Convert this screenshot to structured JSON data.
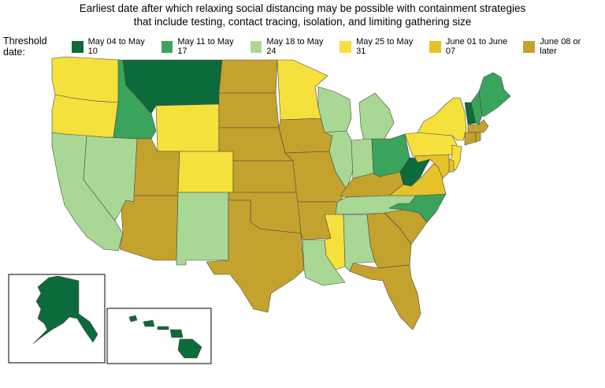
{
  "title_line1": "Earliest date after which relaxing social distancing may be possible with containment strategies",
  "title_line2": "that include testing, contact tracing, isolation, and limiting gathering size",
  "legend": {
    "title": "Threshold date:",
    "categories": [
      {
        "label": "May 04 to May 10",
        "color": "#0b6b3a"
      },
      {
        "label": "May 11 to May 17",
        "color": "#3aa35c"
      },
      {
        "label": "May 18 to May 24",
        "color": "#a8d893"
      },
      {
        "label": "May 25 to May 31",
        "color": "#f5e03c"
      },
      {
        "label": "June 01 to June 07",
        "color": "#e6c22a"
      },
      {
        "label": "June 08 or later",
        "color": "#c4a22e"
      }
    ]
  },
  "states": {
    "WA": 3,
    "OR": 3,
    "CA": 2,
    "NV": 2,
    "ID": 1,
    "MT": 0,
    "WY": 3,
    "UT": 5,
    "AZ": 5,
    "CO": 3,
    "NM": 2,
    "ND": 5,
    "SD": 5,
    "NE": 5,
    "KS": 5,
    "OK": 5,
    "TX": 5,
    "MN": 3,
    "IA": 5,
    "MO": 5,
    "AR": 5,
    "LA": 2,
    "WI": 2,
    "IL": 2,
    "MI": 2,
    "IN": 2,
    "OH": 1,
    "KY": 5,
    "TN": 2,
    "MS": 3,
    "AL": 2,
    "GA": 5,
    "FL": 5,
    "SC": 5,
    "NC": 1,
    "VA": 4,
    "WV": 0,
    "PA": 3,
    "NY": 3,
    "VT": 0,
    "NH": 1,
    "ME": 1,
    "MA": 5,
    "CT": 5,
    "RI": 5,
    "NJ": 3,
    "DE": 4,
    "MD": 4,
    "AK": 0,
    "HI": 0
  }
}
